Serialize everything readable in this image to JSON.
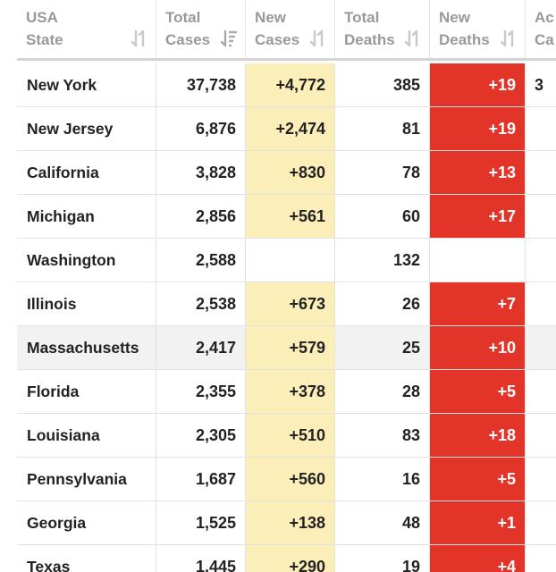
{
  "headers": {
    "state": [
      "USA",
      "State"
    ],
    "total_cases": [
      "Total",
      "Cases"
    ],
    "new_cases": [
      "New",
      "Cases"
    ],
    "total_deaths": [
      "Total",
      "Deaths"
    ],
    "new_deaths": [
      "New",
      "Deaths"
    ],
    "active_cases": [
      "Ac",
      "Ca"
    ]
  },
  "colors": {
    "new_cases_highlight": "#fbeeb8",
    "new_deaths_highlight": "#e3342a"
  },
  "rows": [
    {
      "state": "New York",
      "total_cases": "37,738",
      "new_cases": "+4,772",
      "total_deaths": "385",
      "new_deaths": "+19",
      "active": "3"
    },
    {
      "state": "New Jersey",
      "total_cases": "6,876",
      "new_cases": "+2,474",
      "total_deaths": "81",
      "new_deaths": "+19",
      "active": ""
    },
    {
      "state": "California",
      "total_cases": "3,828",
      "new_cases": "+830",
      "total_deaths": "78",
      "new_deaths": "+13",
      "active": ""
    },
    {
      "state": "Michigan",
      "total_cases": "2,856",
      "new_cases": "+561",
      "total_deaths": "60",
      "new_deaths": "+17",
      "active": ""
    },
    {
      "state": "Washington",
      "total_cases": "2,588",
      "new_cases": "",
      "total_deaths": "132",
      "new_deaths": "",
      "active": ""
    },
    {
      "state": "Illinois",
      "total_cases": "2,538",
      "new_cases": "+673",
      "total_deaths": "26",
      "new_deaths": "+7",
      "active": ""
    },
    {
      "state": "Massachusetts",
      "total_cases": "2,417",
      "new_cases": "+579",
      "total_deaths": "25",
      "new_deaths": "+10",
      "active": ""
    },
    {
      "state": "Florida",
      "total_cases": "2,355",
      "new_cases": "+378",
      "total_deaths": "28",
      "new_deaths": "+5",
      "active": ""
    },
    {
      "state": "Louisiana",
      "total_cases": "2,305",
      "new_cases": "+510",
      "total_deaths": "83",
      "new_deaths": "+18",
      "active": ""
    },
    {
      "state": "Pennsylvania",
      "total_cases": "1,687",
      "new_cases": "+560",
      "total_deaths": "16",
      "new_deaths": "+5",
      "active": ""
    },
    {
      "state": "Georgia",
      "total_cases": "1,525",
      "new_cases": "+138",
      "total_deaths": "48",
      "new_deaths": "+1",
      "active": ""
    },
    {
      "state": "Texas",
      "total_cases": "1,445",
      "new_cases": "+290",
      "total_deaths": "19",
      "new_deaths": "+4",
      "active": ""
    }
  ]
}
